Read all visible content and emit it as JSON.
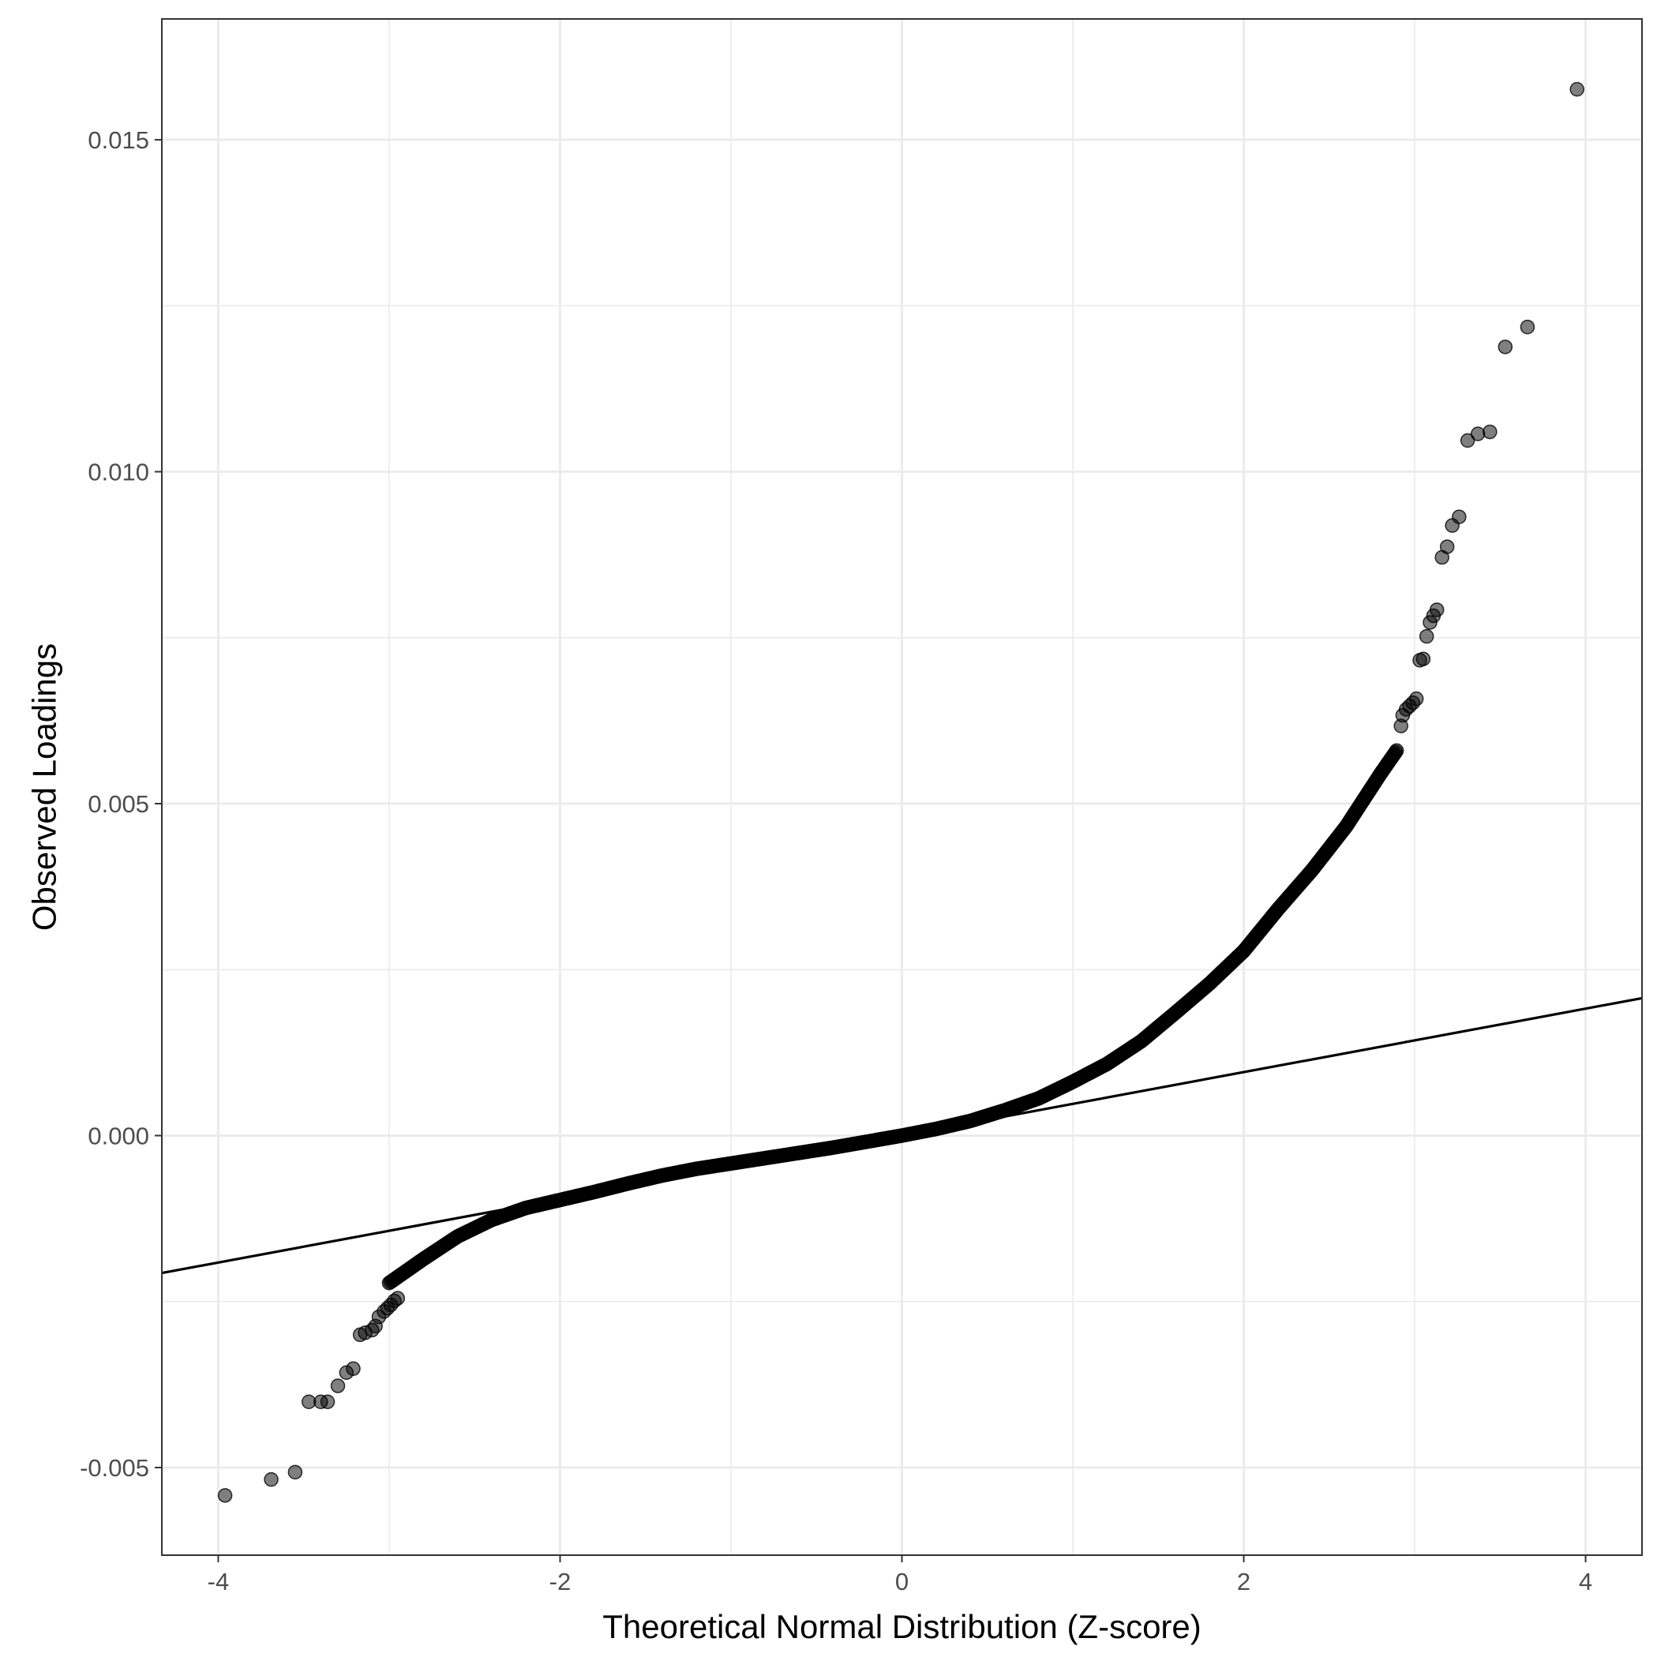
{
  "chart_data": {
    "type": "scatter",
    "title": "",
    "xlabel": "Theoretical Normal Distribution (Z-score)",
    "ylabel": "Observed Loadings",
    "xlim": [
      -4.33,
      4.33
    ],
    "ylim": [
      -0.00632,
      0.01682
    ],
    "x_ticks": [
      -4,
      -2,
      0,
      2,
      4
    ],
    "x_tick_labels": [
      "-4",
      "-2",
      "0",
      "2",
      "4"
    ],
    "y_ticks": [
      -0.005,
      0.0,
      0.005,
      0.01,
      0.015
    ],
    "y_tick_labels": [
      "-0.005",
      "0.000",
      "0.005",
      "0.010",
      "0.015"
    ],
    "grid": true,
    "point_color": "#000000",
    "point_alpha": 0.5,
    "reference_line": {
      "color": "#000000",
      "intercept": 0.0,
      "slope": 0.000478
    },
    "dense_curve": {
      "x": [
        -3.0,
        -2.8,
        -2.6,
        -2.4,
        -2.2,
        -2.0,
        -1.8,
        -1.6,
        -1.4,
        -1.2,
        -1.0,
        -0.8,
        -0.6,
        -0.4,
        -0.2,
        0.0,
        0.2,
        0.4,
        0.6,
        0.8,
        1.0,
        1.2,
        1.4,
        1.6,
        1.8,
        2.0,
        2.2,
        2.4,
        2.6,
        2.8,
        2.9
      ],
      "y": [
        -0.00222,
        -0.00186,
        -0.00152,
        -0.00127,
        -0.00109,
        -0.00097,
        -0.00085,
        -0.00072,
        -0.0006,
        -0.0005,
        -0.00042,
        -0.00034,
        -0.00026,
        -0.00018,
        -9e-05,
        0.0,
        0.0001,
        0.00022,
        0.00038,
        0.00056,
        0.00081,
        0.00108,
        0.00142,
        0.00185,
        0.00229,
        0.00278,
        0.00341,
        0.004,
        0.00466,
        0.00545,
        0.00582
      ]
    },
    "outliers": {
      "x": [
        -3.96,
        -3.69,
        -3.55,
        -3.47,
        -3.4,
        -3.36,
        -3.3,
        -3.25,
        -3.21,
        -3.17,
        -3.14,
        -3.1,
        -3.08,
        -3.06,
        -3.03,
        -3.01,
        -2.99,
        -2.97,
        -2.95,
        2.92,
        2.93,
        2.95,
        2.97,
        2.99,
        3.01,
        3.03,
        3.05,
        3.07,
        3.09,
        3.11,
        3.13,
        3.16,
        3.19,
        3.22,
        3.26,
        3.31,
        3.37,
        3.44,
        3.53,
        3.66,
        3.95
      ],
      "y": [
        -0.00542,
        -0.00518,
        -0.00507,
        -0.00401,
        -0.00401,
        -0.00401,
        -0.00377,
        -0.00357,
        -0.00351,
        -0.003,
        -0.00297,
        -0.00293,
        -0.00287,
        -0.00273,
        -0.00265,
        -0.0026,
        -0.00255,
        -0.00249,
        -0.00245,
        0.00617,
        0.00633,
        0.00642,
        0.00647,
        0.00652,
        0.00658,
        0.00716,
        0.00718,
        0.00752,
        0.00773,
        0.00783,
        0.00792,
        0.00871,
        0.00887,
        0.00919,
        0.00932,
        0.01047,
        0.01057,
        0.0106,
        0.01188,
        0.01218,
        0.01576
      ]
    }
  }
}
